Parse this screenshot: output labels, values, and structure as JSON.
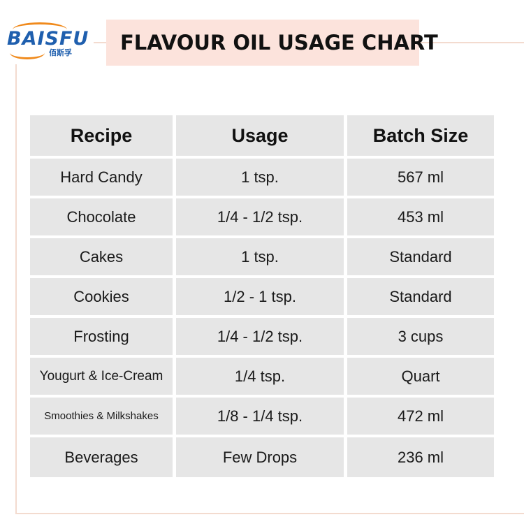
{
  "brand": {
    "logo_text": "BAISFU",
    "logo_subtext": "佰斯孚",
    "colors": {
      "primary": "#1f5fae",
      "accent": "#f08a1c"
    }
  },
  "title": "FLAVOUR OIL USAGE CHART",
  "table": {
    "headers": [
      "Recipe",
      "Usage",
      "Batch Size"
    ],
    "rows": [
      {
        "recipe": "Hard Candy",
        "usage": "1 tsp.",
        "batch": "567 ml"
      },
      {
        "recipe": "Chocolate",
        "usage": "1/4 - 1/2 tsp.",
        "batch": "453 ml"
      },
      {
        "recipe": "Cakes",
        "usage": "1 tsp.",
        "batch": "Standard"
      },
      {
        "recipe": "Cookies",
        "usage": "1/2 - 1 tsp.",
        "batch": "Standard"
      },
      {
        "recipe": "Frosting",
        "usage": "1/4 - 1/2 tsp.",
        "batch": "3 cups"
      },
      {
        "recipe": "Yougurt & Ice-Cream",
        "usage": "1/4 tsp.",
        "batch": "Quart"
      },
      {
        "recipe": "Smoothies & Milkshakes",
        "usage": "1/8 - 1/4 tsp.",
        "batch": "472 ml"
      },
      {
        "recipe": "Beverages",
        "usage": "Few Drops",
        "batch": "236 ml"
      }
    ]
  }
}
